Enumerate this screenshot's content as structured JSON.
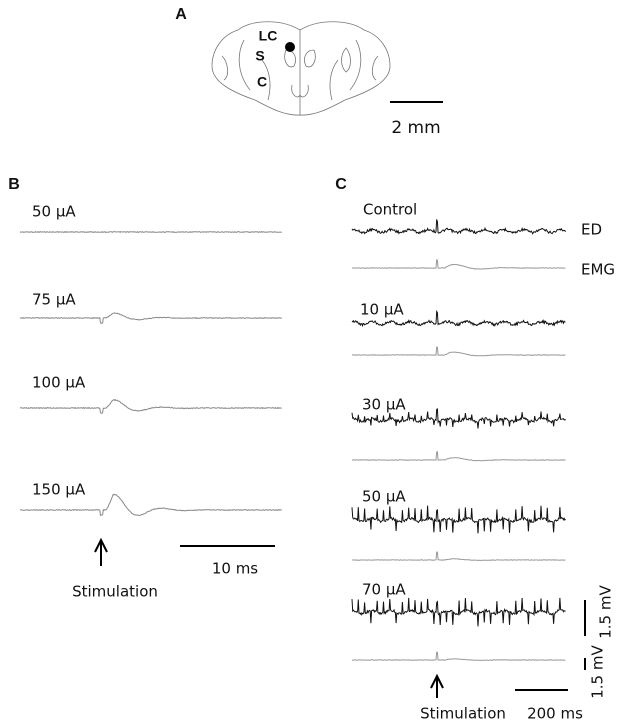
{
  "panel_a": {
    "label": "A",
    "regions": [
      "LC",
      "S",
      "C"
    ],
    "scale_bar": "2 mm"
  },
  "panel_b": {
    "label": "B",
    "traces": [
      "50 μA",
      "75 μA",
      "100 μA",
      "150 μA"
    ],
    "stimulus": "Stimulation",
    "scale_bar": "10 ms"
  },
  "panel_c": {
    "label": "C",
    "traces": [
      "Control",
      "10 μA",
      "30 μA",
      "50 μA",
      "70 μA"
    ],
    "channels": [
      "ED",
      "EMG"
    ],
    "stimulus": "Stimulation",
    "time_scale": "200 ms",
    "voltage_scales": [
      "1.5 mV",
      "1.5 mV"
    ]
  }
}
